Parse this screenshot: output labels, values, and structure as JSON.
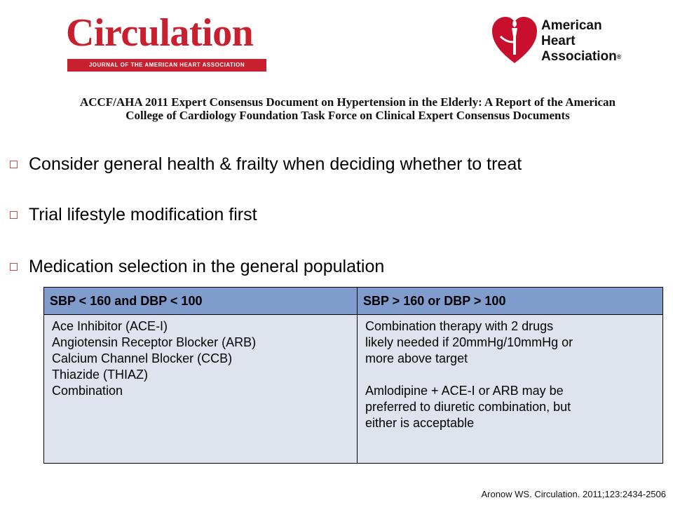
{
  "logos": {
    "journal_title": "Circulation",
    "journal_subtitle": "JOURNAL OF THE AMERICAN HEART ASSOCIATION",
    "aha_lines": [
      "American",
      "Heart",
      "Association"
    ],
    "aha_registered": "®",
    "aha_color": "#c8102e"
  },
  "headline": "ACCF/AHA 2011 Expert Consensus Document on Hypertension in the Elderly: A Report of the American College of Cardiology Foundation Task Force on Clinical Expert Consensus Documents",
  "bullets": [
    "Consider general health & frailty when deciding whether to treat",
    "Trial lifestyle modification first",
    "Medication selection in the general population"
  ],
  "table": {
    "header": [
      "SBP < 160 and DBP < 100",
      "SBP > 160 or DBP > 100"
    ],
    "col1_lines": [
      "Ace Inhibitor (ACE-I)",
      "Angiotensin Receptor Blocker (ARB)",
      "Calcium Channel Blocker (CCB)",
      "Thiazide (THIAZ)",
      "Combination"
    ],
    "col2_lines": [
      "Combination therapy with 2 drugs",
      "likely needed if 20mmHg/10mmHg or",
      "more above target",
      "",
      "Amlodipine + ACE-I or ARB may be",
      "preferred to diuretic combination, but",
      "either is acceptable"
    ]
  },
  "citation": "Aronow WS. Circulation. 2011;123:2434-2506",
  "colors": {
    "header_bg": "#7f9ccc",
    "cell_bg": "#dfe3ee",
    "brand_red": "#c8202f",
    "bullet_box": "#c0504d"
  }
}
